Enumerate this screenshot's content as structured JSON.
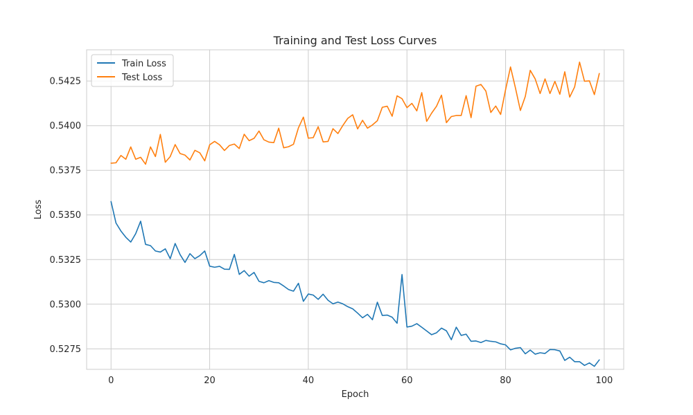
{
  "chart_data": {
    "type": "line",
    "title": "Training and Test Loss Curves",
    "xlabel": "Epoch",
    "ylabel": "Loss",
    "xlim": [
      -4.95,
      103.95
    ],
    "ylim": [
      0.52635,
      0.54425
    ],
    "x_ticks": [
      0,
      20,
      40,
      60,
      80,
      100
    ],
    "x_tick_labels": [
      "0",
      "20",
      "40",
      "60",
      "80",
      "100"
    ],
    "y_ticks": [
      0.5275,
      0.53,
      0.5325,
      0.535,
      0.5375,
      0.54,
      0.5425
    ],
    "y_tick_labels": [
      "0.5275",
      "0.5300",
      "0.5325",
      "0.5350",
      "0.5375",
      "0.5400",
      "0.5425"
    ],
    "grid": true,
    "legend_position": "top-left",
    "series": [
      {
        "name": "Train Loss",
        "color": "#1f77b4",
        "x": [
          0,
          1,
          2,
          3,
          4,
          5,
          6,
          7,
          8,
          9,
          10,
          11,
          12,
          13,
          14,
          15,
          16,
          17,
          18,
          19,
          20,
          21,
          22,
          23,
          24,
          25,
          26,
          27,
          28,
          29,
          30,
          31,
          32,
          33,
          34,
          35,
          36,
          37,
          38,
          39,
          40,
          41,
          42,
          43,
          44,
          45,
          46,
          47,
          48,
          49,
          50,
          51,
          52,
          53,
          54,
          55,
          56,
          57,
          58,
          59,
          60,
          61,
          62,
          63,
          64,
          65,
          66,
          67,
          68,
          69,
          70,
          71,
          72,
          73,
          74,
          75,
          76,
          77,
          78,
          79,
          80,
          81,
          82,
          83,
          84,
          85,
          86,
          87,
          88,
          89,
          90,
          91,
          92,
          93,
          94,
          95,
          96,
          97,
          98,
          99
        ],
        "values": [
          0.53575,
          0.53455,
          0.5341,
          0.53375,
          0.53348,
          0.53395,
          0.53465,
          0.53335,
          0.53328,
          0.53298,
          0.53292,
          0.5331,
          0.53255,
          0.5334,
          0.53278,
          0.53234,
          0.53283,
          0.53255,
          0.53272,
          0.53298,
          0.53213,
          0.53207,
          0.53212,
          0.53196,
          0.53195,
          0.53279,
          0.53167,
          0.53188,
          0.53157,
          0.53178,
          0.53128,
          0.5312,
          0.53132,
          0.53122,
          0.5312,
          0.53102,
          0.53082,
          0.53073,
          0.53117,
          0.53016,
          0.53057,
          0.53051,
          0.53027,
          0.53056,
          0.53022,
          0.53002,
          0.53012,
          0.53002,
          0.52986,
          0.52974,
          0.5295,
          0.52924,
          0.52943,
          0.52913,
          0.53011,
          0.52937,
          0.52939,
          0.52927,
          0.52893,
          0.53166,
          0.52872,
          0.52877,
          0.52891,
          0.52871,
          0.5285,
          0.52829,
          0.5284,
          0.52866,
          0.52851,
          0.52801,
          0.52871,
          0.52825,
          0.52832,
          0.52792,
          0.52794,
          0.52785,
          0.52797,
          0.52792,
          0.52789,
          0.52778,
          0.52772,
          0.52744,
          0.52753,
          0.52757,
          0.52722,
          0.52743,
          0.5272,
          0.52728,
          0.52724,
          0.52746,
          0.52745,
          0.52738,
          0.52685,
          0.52703,
          0.52678,
          0.52678,
          0.52657,
          0.52671,
          0.52652,
          0.52688
        ]
      },
      {
        "name": "Test Loss",
        "color": "#ff7f0e",
        "x": [
          0,
          1,
          2,
          3,
          4,
          5,
          6,
          7,
          8,
          9,
          10,
          11,
          12,
          13,
          14,
          15,
          16,
          17,
          18,
          19,
          20,
          21,
          22,
          23,
          24,
          25,
          26,
          27,
          28,
          29,
          30,
          31,
          32,
          33,
          34,
          35,
          36,
          37,
          38,
          39,
          40,
          41,
          42,
          43,
          44,
          45,
          46,
          47,
          48,
          49,
          50,
          51,
          52,
          53,
          54,
          55,
          56,
          57,
          58,
          59,
          60,
          61,
          62,
          63,
          64,
          65,
          66,
          67,
          68,
          69,
          70,
          71,
          72,
          73,
          74,
          75,
          76,
          77,
          78,
          79,
          80,
          81,
          82,
          83,
          84,
          85,
          86,
          87,
          88,
          89,
          90,
          91,
          92,
          93,
          94,
          95,
          96,
          97,
          98,
          99
        ],
        "values": [
          0.5379,
          0.53792,
          0.53833,
          0.53812,
          0.53881,
          0.53812,
          0.53823,
          0.53784,
          0.53881,
          0.53827,
          0.53951,
          0.53795,
          0.53827,
          0.53894,
          0.53844,
          0.53835,
          0.53808,
          0.53862,
          0.53848,
          0.53803,
          0.53893,
          0.53912,
          0.53893,
          0.53861,
          0.53889,
          0.53897,
          0.53872,
          0.53952,
          0.53916,
          0.53929,
          0.5397,
          0.53921,
          0.53908,
          0.53905,
          0.53986,
          0.53876,
          0.53882,
          0.53896,
          0.53988,
          0.54048,
          0.5393,
          0.53933,
          0.53994,
          0.53909,
          0.53912,
          0.53983,
          0.53956,
          0.54001,
          0.54041,
          0.54061,
          0.53982,
          0.5403,
          0.53986,
          0.54004,
          0.54028,
          0.54103,
          0.54109,
          0.54053,
          0.54167,
          0.54151,
          0.54101,
          0.54125,
          0.54083,
          0.54185,
          0.54024,
          0.5407,
          0.54109,
          0.54171,
          0.54017,
          0.54051,
          0.54057,
          0.54057,
          0.54168,
          0.54045,
          0.54221,
          0.54231,
          0.54194,
          0.54074,
          0.5411,
          0.54063,
          0.54202,
          0.54329,
          0.54211,
          0.54085,
          0.54164,
          0.5431,
          0.54262,
          0.5418,
          0.54262,
          0.5418,
          0.54248,
          0.54176,
          0.54302,
          0.5416,
          0.54217,
          0.54356,
          0.54249,
          0.54251,
          0.54174,
          0.54292
        ]
      }
    ]
  }
}
